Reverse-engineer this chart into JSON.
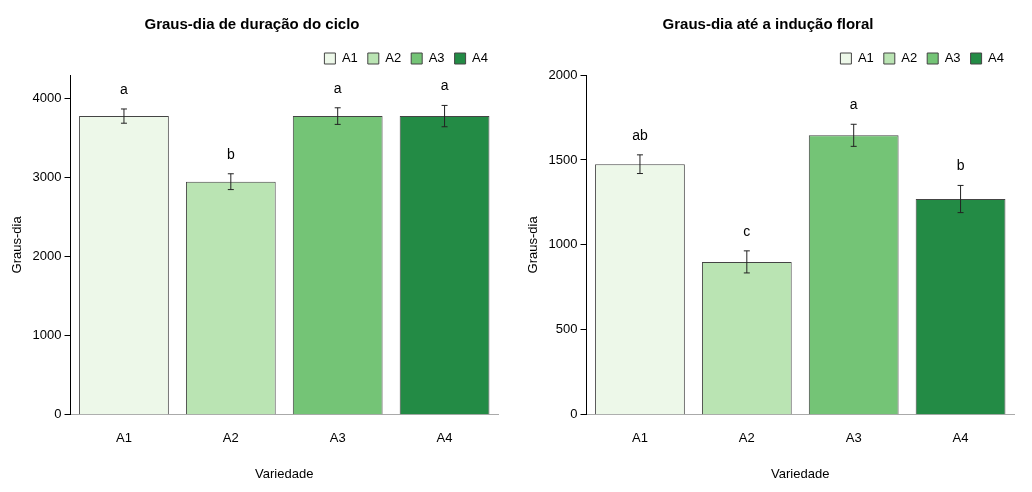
{
  "chart_data": [
    {
      "type": "bar",
      "title": "Graus-dia de duração do ciclo",
      "xlabel": "Variedade",
      "ylabel": "Graus-dia",
      "categories": [
        "A1",
        "A2",
        "A3",
        "A4"
      ],
      "series": [
        {
          "name": "A1",
          "color": "#edf8e9",
          "values": [
            3780,
            null,
            null,
            null
          ],
          "errors": [
            90,
            null,
            null,
            null
          ]
        },
        {
          "name": "A2",
          "color": "#bae4b3",
          "values": [
            null,
            2950,
            null,
            null
          ],
          "errors": [
            null,
            100,
            null,
            null
          ]
        },
        {
          "name": "A3",
          "color": "#74c476",
          "values": [
            null,
            null,
            3780,
            null
          ],
          "errors": [
            null,
            null,
            105,
            null
          ]
        },
        {
          "name": "A4",
          "color": "#238b45",
          "values": [
            null,
            null,
            null,
            3780
          ],
          "errors": [
            null,
            null,
            null,
            135
          ]
        }
      ],
      "ylim": [
        0,
        4300
      ],
      "yticks": [
        0,
        1000,
        2000,
        3000,
        4000
      ],
      "grid": false,
      "legend": "top right",
      "annotations": [
        "a",
        "b",
        "a",
        "a"
      ]
    },
    {
      "type": "bar",
      "title": "Graus-dia até a indução floral",
      "xlabel": "Variedade",
      "ylabel": "Graus-dia",
      "categories": [
        "A1",
        "A2",
        "A3",
        "A4"
      ],
      "series": [
        {
          "name": "A1",
          "color": "#edf8e9",
          "values": [
            1475,
            null,
            null,
            null
          ],
          "errors": [
            55,
            null,
            null,
            null
          ]
        },
        {
          "name": "A2",
          "color": "#bae4b3",
          "values": [
            null,
            900,
            null,
            null
          ],
          "errors": [
            null,
            65,
            null,
            null
          ]
        },
        {
          "name": "A3",
          "color": "#74c476",
          "values": [
            null,
            null,
            1645,
            null
          ],
          "errors": [
            null,
            null,
            65,
            null
          ]
        },
        {
          "name": "A4",
          "color": "#238b45",
          "values": [
            null,
            null,
            null,
            1270
          ],
          "errors": [
            null,
            null,
            null,
            80
          ]
        }
      ],
      "ylim": [
        0,
        2000
      ],
      "yticks": [
        0,
        500,
        1000,
        1500,
        2000
      ],
      "grid": false,
      "legend": "top right",
      "annotations": [
        "ab",
        "c",
        "a",
        "b"
      ]
    }
  ]
}
